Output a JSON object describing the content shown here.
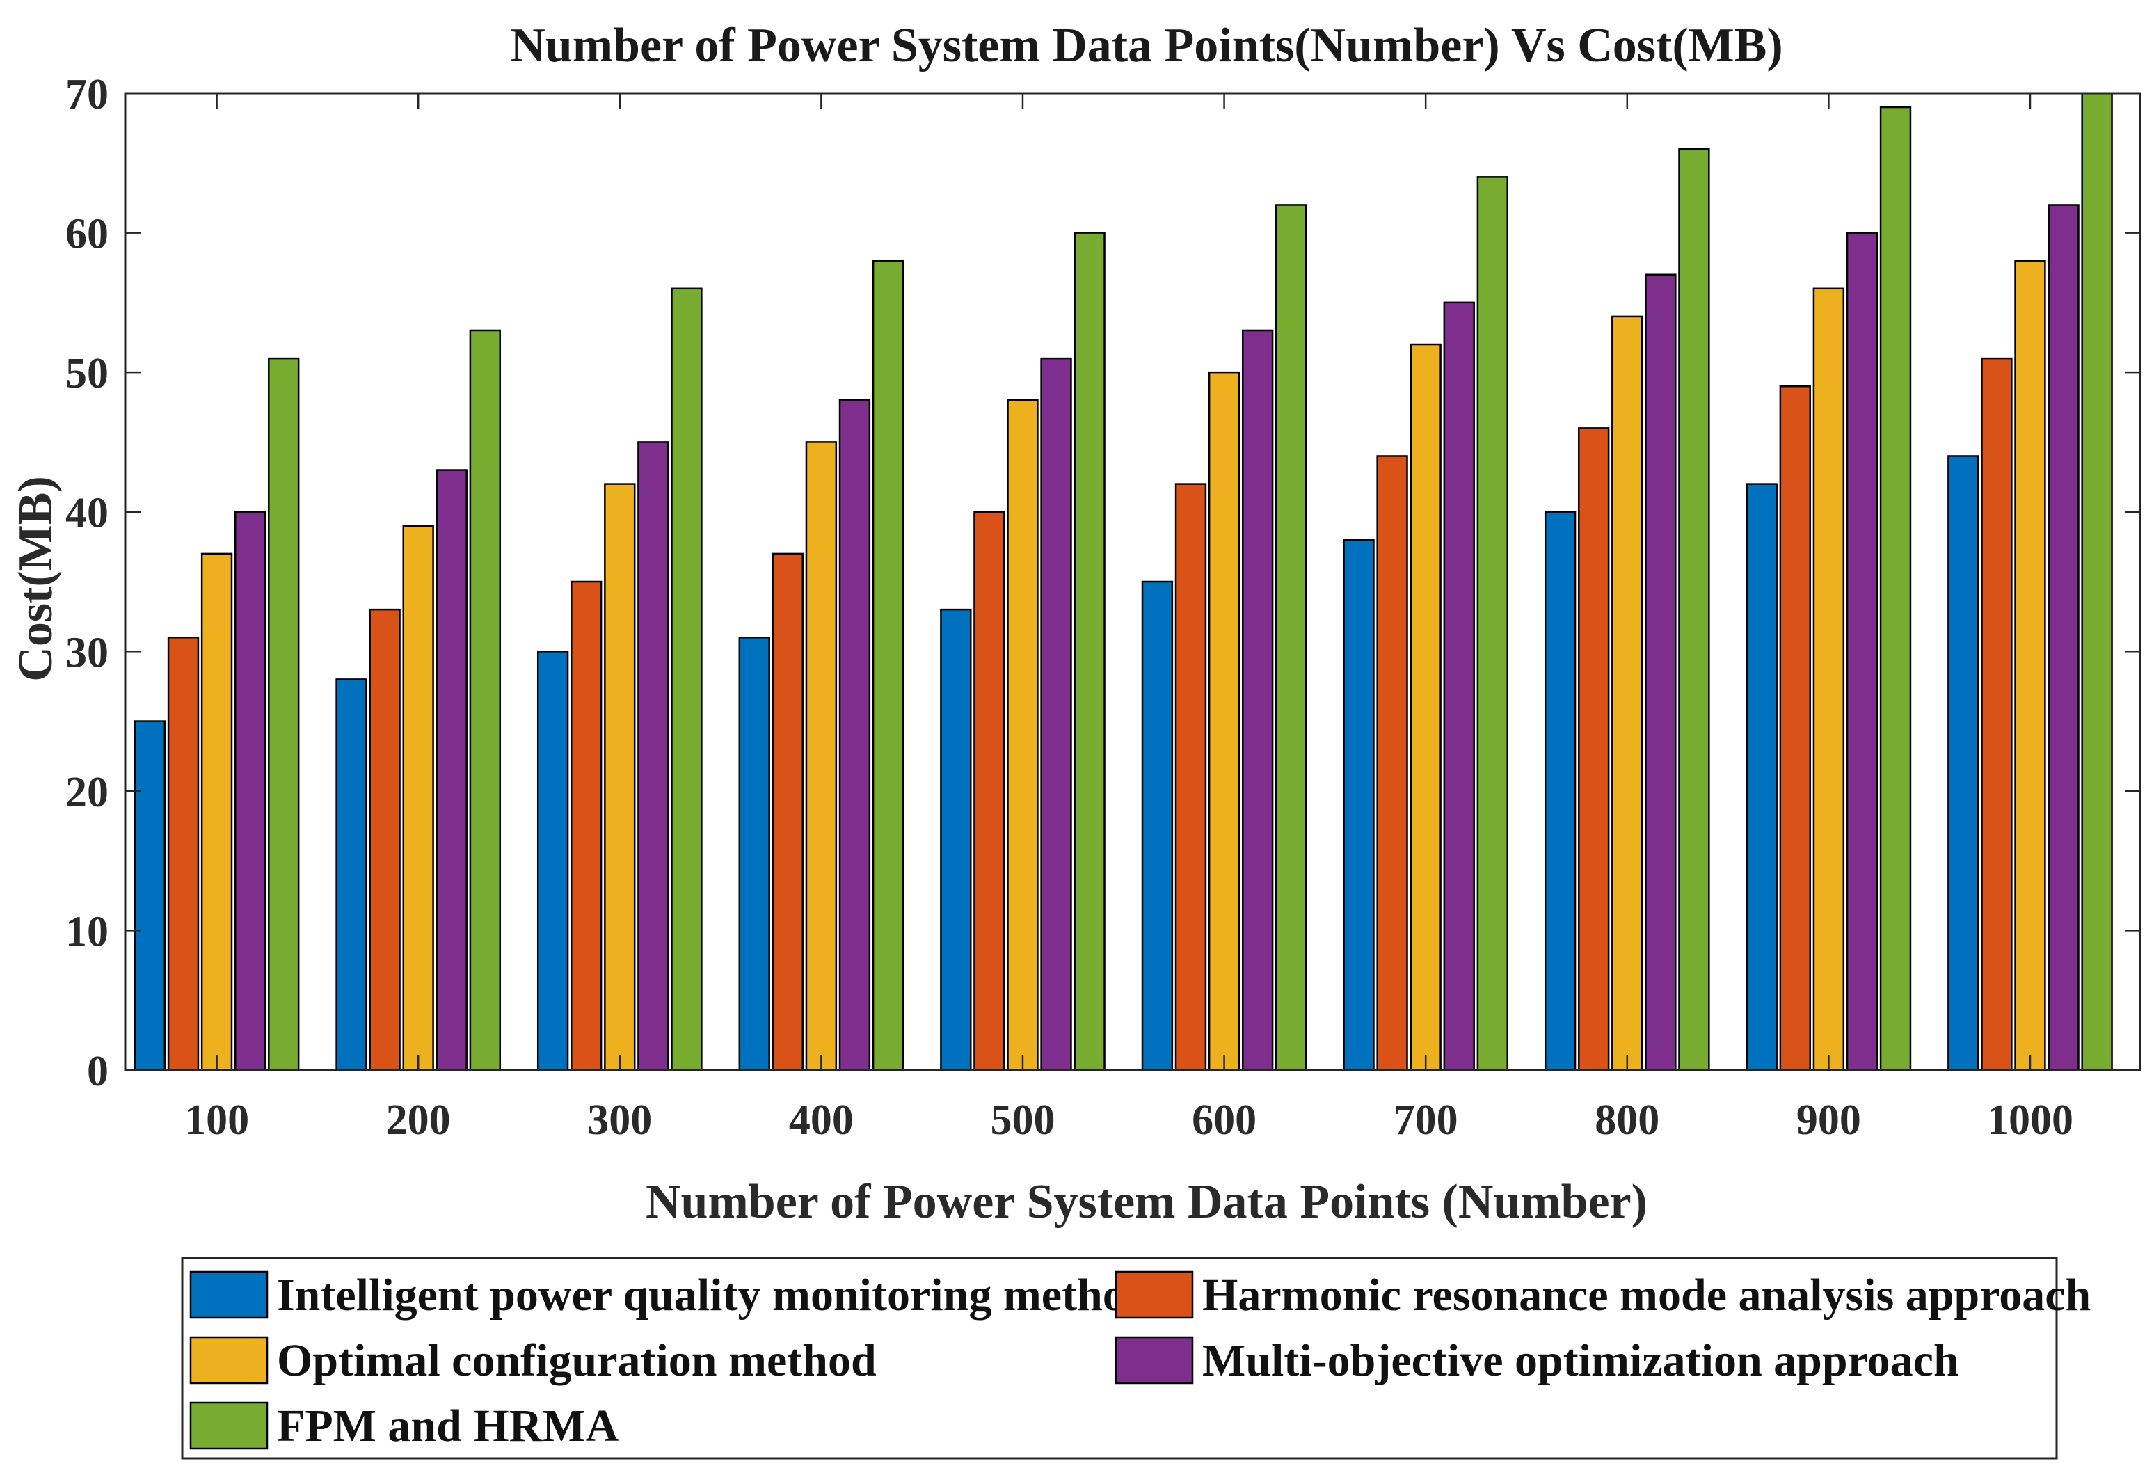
{
  "chart_data": {
    "type": "bar",
    "title": "Number of Power System Data Points(Number) Vs Cost(MB)",
    "xlabel": "Number of Power System Data Points (Number)",
    "ylabel": "Cost(MB)",
    "ylim": [
      0,
      70
    ],
    "yticks": [
      0,
      10,
      20,
      30,
      40,
      50,
      60,
      70
    ],
    "categories": [
      "100",
      "200",
      "300",
      "400",
      "500",
      "600",
      "700",
      "800",
      "900",
      "1000"
    ],
    "series": [
      {
        "name": "Intelligent power quality monitoring method",
        "color": "#0072BD",
        "values": [
          25,
          28,
          30,
          31,
          33,
          35,
          38,
          40,
          42,
          44
        ]
      },
      {
        "name": "Harmonic resonance mode analysis approach",
        "color": "#D95319",
        "values": [
          31,
          33,
          35,
          37,
          40,
          42,
          44,
          46,
          49,
          51
        ]
      },
      {
        "name": "Optimal configuration method",
        "color": "#EDB120",
        "values": [
          37,
          39,
          42,
          45,
          48,
          50,
          52,
          54,
          56,
          58
        ]
      },
      {
        "name": "Multi-objective optimization approach",
        "color": "#7E2F8E",
        "values": [
          40,
          43,
          45,
          48,
          51,
          53,
          55,
          57,
          60,
          62
        ]
      },
      {
        "name": "FPM and HRMA",
        "color": "#77AC30",
        "values": [
          51,
          53,
          56,
          58,
          60,
          62,
          64,
          66,
          69,
          70
        ]
      }
    ],
    "grid": false,
    "legend_position": "bottom"
  }
}
